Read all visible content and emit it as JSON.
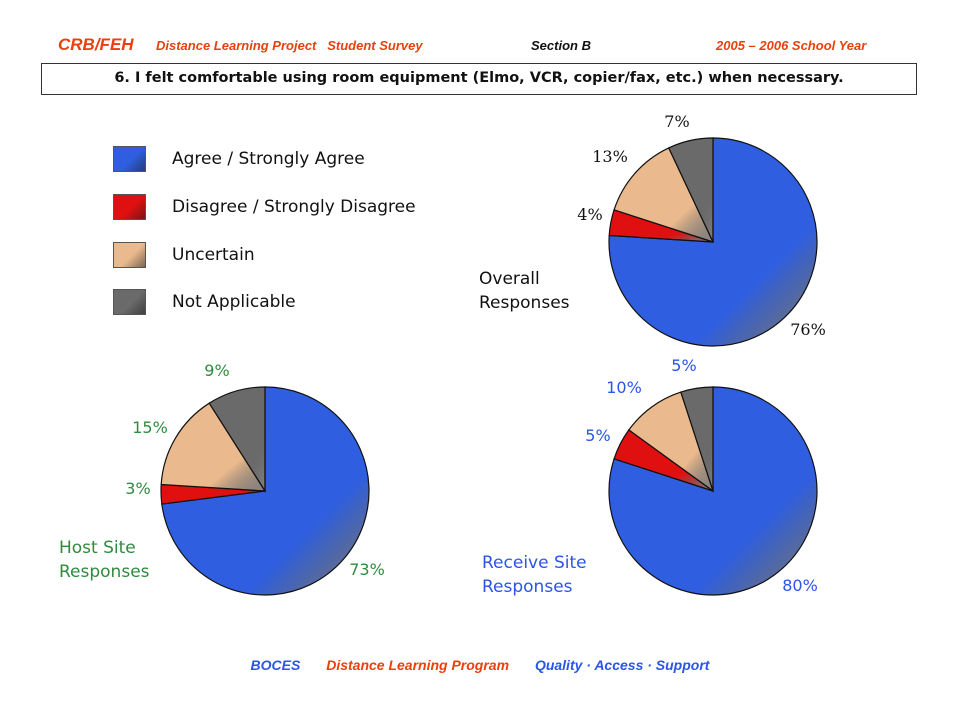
{
  "header": {
    "org": "CRB/FEH",
    "project": "Distance Learning Project   Student Survey",
    "section": "Section B",
    "year": "2005 – 2006 School Year"
  },
  "question": "6. I felt comfortable using room equipment (Elmo, VCR, copier/fax, etc.) when necessary.",
  "legend": [
    {
      "label": "Agree / Strongly Agree",
      "color": "#2f5fe0"
    },
    {
      "label": "Disagree / Strongly Disagree",
      "color": "#e01010"
    },
    {
      "label": "Uncertain",
      "color": "#eab98d"
    },
    {
      "label": "Not Applicable",
      "color": "#6a6a6a"
    }
  ],
  "chart_data": [
    {
      "type": "pie",
      "title": "Overall\nResponses",
      "categories": [
        "Agree / Strongly Agree",
        "Disagree / Strongly Disagree",
        "Uncertain",
        "Not Applicable"
      ],
      "values": [
        76,
        4,
        13,
        7
      ],
      "labels": [
        "76%",
        "4%",
        "13%",
        "7%"
      ],
      "label_color": "#111111"
    },
    {
      "type": "pie",
      "title": "Host Site\nResponses",
      "categories": [
        "Agree / Strongly Agree",
        "Disagree / Strongly Disagree",
        "Uncertain",
        "Not Applicable"
      ],
      "values": [
        73,
        3,
        15,
        9
      ],
      "labels": [
        "73%",
        "3%",
        "15%",
        "9%"
      ],
      "label_color": "#2e8b3e"
    },
    {
      "type": "pie",
      "title": "Receive Site\nResponses",
      "categories": [
        "Agree / Strongly Agree",
        "Disagree / Strongly Disagree",
        "Uncertain",
        "Not Applicable"
      ],
      "values": [
        80,
        5,
        10,
        5
      ],
      "labels": [
        "80%",
        "5%",
        "10%",
        "5%"
      ],
      "label_color": "#2a55e6"
    }
  ],
  "footer": {
    "org": "BOCES",
    "program": "Distance  Learning  Program",
    "tagline": "Quality · Access · Support"
  }
}
